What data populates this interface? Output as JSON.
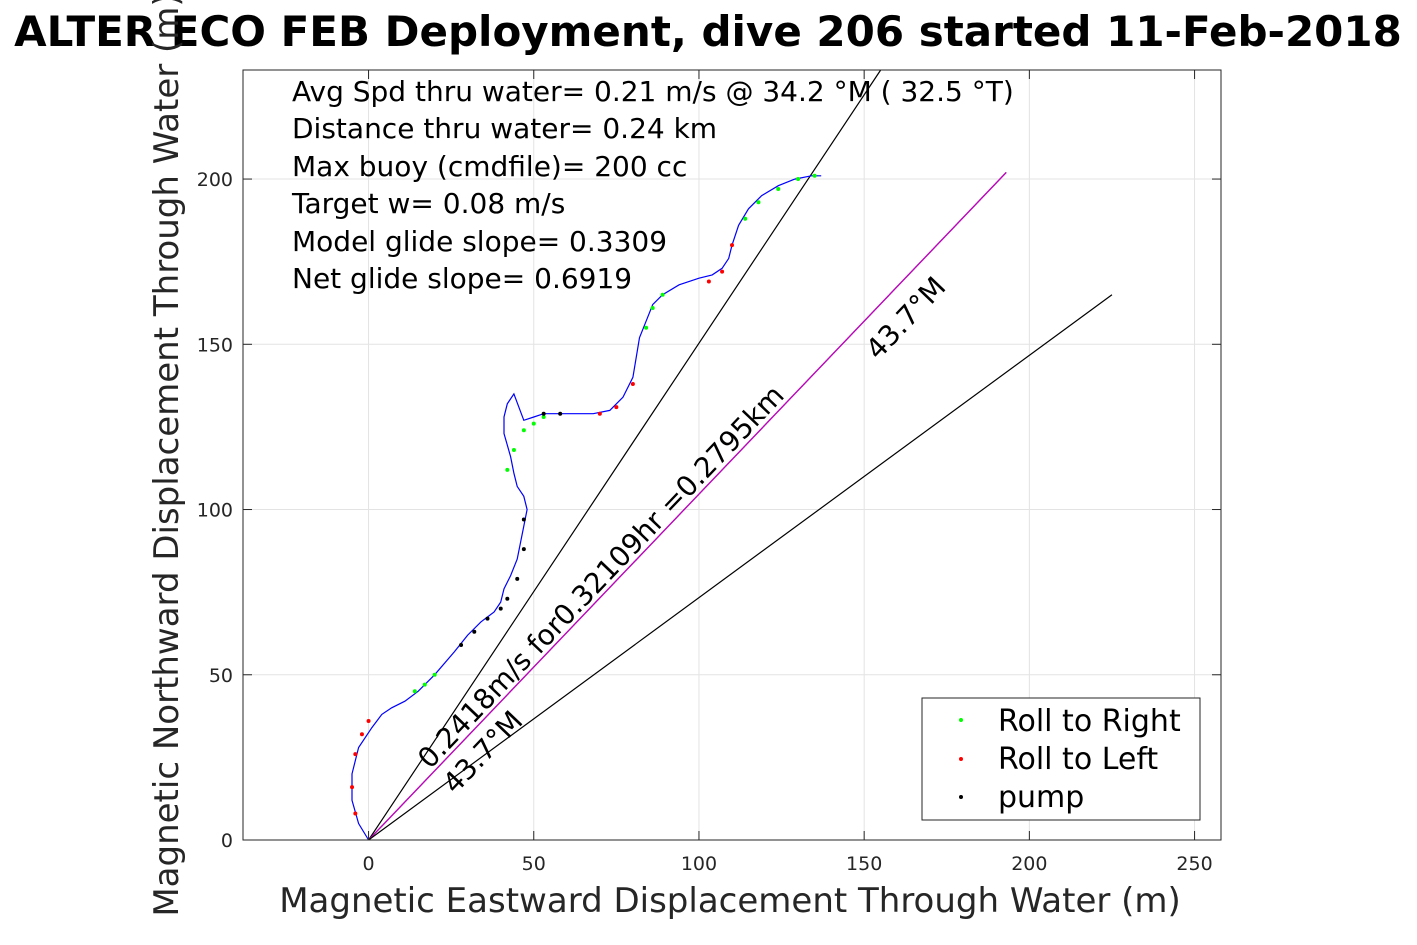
{
  "chart_data": {
    "type": "line",
    "title": "ALTER ECO FEB Deployment, dive 206 started 11-Feb-2018",
    "xlabel": "Magnetic Eastward Displacement Through Water (m)",
    "ylabel": "Magnetic Northward Displacement Through Water (m)",
    "xlim": [
      -38,
      258
    ],
    "ylim": [
      0,
      233
    ],
    "xticks": [
      0,
      50,
      100,
      150,
      200,
      250
    ],
    "yticks": [
      0,
      50,
      100,
      150,
      200
    ],
    "grid": true,
    "annotations": [
      "Avg Spd thru water=  0.21 m/s @  34.2 °M ( 32.5 °T)",
      "Distance thru water=  0.24 km",
      "Max buoy (cmdfile)= 200 cc",
      "Target w= 0.08 m/s",
      "Model glide slope= 0.3309",
      "Net glide slope= 0.6919"
    ],
    "rotated_labels": {
      "speed": "0.2418m/s for0.32109hr =0.2795km",
      "heading_near": "43.7°M",
      "heading_far": "43.7°M"
    },
    "reference_lines": [
      {
        "name": "upper-bound",
        "color": "#000000",
        "x": [
          0,
          155
        ],
        "y": [
          0,
          233
        ]
      },
      {
        "name": "heading-line",
        "color": "#000000",
        "x": [
          0,
          193
        ],
        "y": [
          0,
          202
        ]
      },
      {
        "name": "heading-magenta",
        "color": "#cc00cc",
        "x": [
          0,
          193
        ],
        "y": [
          0,
          202
        ]
      },
      {
        "name": "lower-bound",
        "color": "#000000",
        "x": [
          0,
          225
        ],
        "y": [
          0,
          165
        ]
      }
    ],
    "track": {
      "color": "#0000ff",
      "x": [
        0,
        -3,
        -5,
        -5,
        -3,
        1,
        4,
        7,
        11,
        15,
        20,
        26,
        30,
        34,
        38,
        40,
        41,
        43,
        45,
        46,
        47,
        48,
        47,
        45,
        44,
        43,
        41,
        41,
        42,
        44,
        47,
        50,
        53,
        58,
        63,
        68,
        73,
        77,
        80,
        81,
        82,
        84,
        86,
        89,
        94,
        100,
        104,
        107,
        109,
        110,
        112,
        115,
        119,
        124,
        129,
        134,
        137
      ],
      "y": [
        0,
        5,
        12,
        20,
        28,
        34,
        38,
        40,
        42,
        45,
        50,
        57,
        62,
        66,
        69,
        72,
        76,
        80,
        85,
        90,
        95,
        100,
        104,
        107,
        111,
        116,
        123,
        128,
        132,
        135,
        127,
        128,
        129,
        129,
        129,
        129,
        130,
        134,
        140,
        146,
        152,
        157,
        162,
        165,
        168,
        170,
        171,
        173,
        176,
        180,
        186,
        191,
        195,
        198,
        200,
        201,
        201
      ]
    },
    "series": [
      {
        "name": "Roll to Right",
        "color": "#00ff00",
        "x": [
          14,
          17,
          20,
          42,
          44,
          47,
          50,
          53,
          84,
          86,
          89,
          114,
          118,
          124,
          130,
          135
        ],
        "y": [
          45,
          47,
          50,
          112,
          118,
          124,
          126,
          128,
          155,
          161,
          165,
          188,
          193,
          197,
          200,
          201
        ]
      },
      {
        "name": "Roll to Left",
        "color": "#ff0000",
        "x": [
          -4,
          -5,
          -4,
          -2,
          0,
          70,
          75,
          80,
          103,
          107,
          110
        ],
        "y": [
          8,
          16,
          26,
          32,
          36,
          129,
          131,
          138,
          169,
          172,
          180
        ]
      },
      {
        "name": "pump",
        "color": "#000000",
        "x": [
          28,
          32,
          36,
          40,
          42,
          45,
          47,
          47,
          53,
          58
        ],
        "y": [
          59,
          63,
          67,
          70,
          73,
          79,
          88,
          97,
          129,
          129
        ]
      }
    ]
  }
}
